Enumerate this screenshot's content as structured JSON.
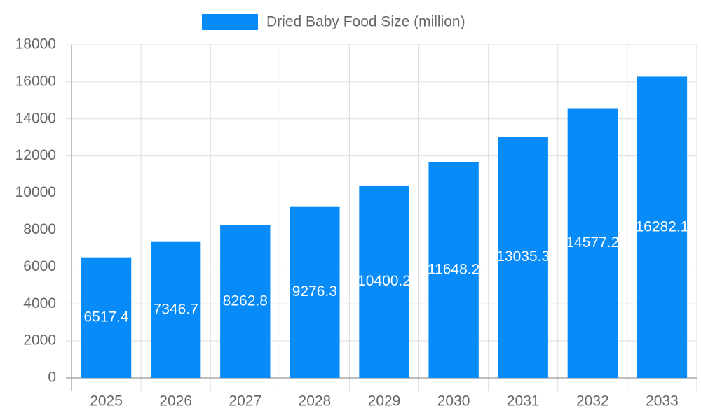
{
  "chart_data": {
    "type": "bar",
    "categories": [
      "2025",
      "2026",
      "2027",
      "2028",
      "2029",
      "2030",
      "2031",
      "2032",
      "2033"
    ],
    "series": [
      {
        "name": "Dried Baby Food Size (million)",
        "color": "#068bf9",
        "values": [
          6517.4,
          7346.7,
          8262.8,
          9276.3,
          10400.2,
          11648.2,
          13035.3,
          14577.2,
          16282.1
        ]
      }
    ],
    "ylim": [
      0,
      18000
    ],
    "yticks": [
      0,
      2000,
      4000,
      6000,
      8000,
      10000,
      12000,
      14000,
      16000,
      18000
    ],
    "grid": true,
    "legend": "top",
    "data_labels": true
  }
}
